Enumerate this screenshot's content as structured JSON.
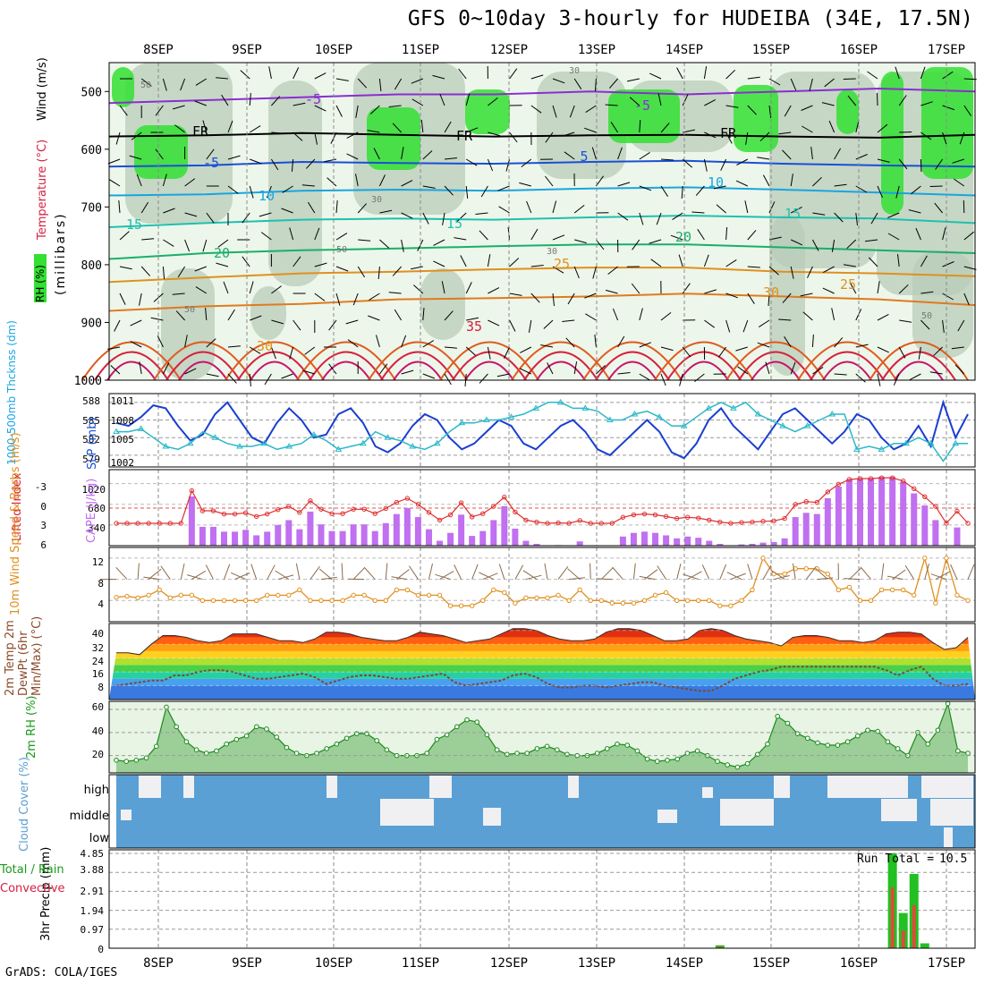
{
  "title": "GFS 0~10day 3-hourly for HUDEIBA (34E, 17.5N)",
  "credit": "GrADS: COLA/IGES",
  "days": [
    "8SEP",
    "9SEP",
    "10SEP",
    "11SEP",
    "12SEP",
    "13SEP",
    "14SEP",
    "15SEP",
    "16SEP",
    "17SEP"
  ],
  "colors": {
    "freezing": "#000000",
    "temp_cold": "#1a4fd6",
    "temp_cool": "#19a5e0",
    "temp_mild": "#1fc0b0",
    "temp_warm": "#1aaf6a",
    "temp_hot": "#e0901e",
    "temp_vhot": "#e05a1e",
    "temp_extreme": "#d62040",
    "rh_low": "#e6f2e2",
    "rh_mid": "#b8ccb8",
    "rh_high": "#33e033"
  },
  "chart_data": [
    {
      "type": "contour",
      "panel": "upper_air",
      "ylabel_rh": "RH (%)",
      "ylabel_temp": "Temperature (°C)",
      "ylabel_wind": "Wind (m/s)",
      "ylabel_units": "(millibars)",
      "y_ticks": [
        500,
        600,
        700,
        800,
        900,
        1000
      ],
      "ylim": [
        1000,
        450
      ],
      "isotherm_labels": [
        "-5",
        "-5",
        "FR",
        "FR",
        "FR",
        "-5",
        "5",
        "10",
        "10",
        "15",
        "15",
        "15",
        "20",
        "20",
        "25",
        "25",
        "30",
        "30",
        "35"
      ],
      "rh_labels": [
        "50",
        "50",
        "30",
        "30",
        "50",
        "50",
        "30"
      ],
      "isotherms": [
        {
          "t": -5,
          "p": [
            520,
            515,
            510,
            505,
            505,
            500,
            505,
            500,
            495,
            500
          ]
        },
        {
          "t": 0,
          "p": [
            578,
            576,
            572,
            575,
            578,
            576,
            575,
            578,
            580,
            575
          ]
        },
        {
          "t": 5,
          "p": [
            630,
            628,
            622,
            624,
            625,
            622,
            620,
            625,
            628,
            630
          ]
        },
        {
          "t": 10,
          "p": [
            680,
            678,
            672,
            670,
            672,
            668,
            666,
            670,
            675,
            680
          ]
        },
        {
          "t": 15,
          "p": [
            735,
            728,
            722,
            720,
            722,
            718,
            715,
            718,
            720,
            728
          ]
        },
        {
          "t": 20,
          "p": [
            790,
            780,
            775,
            772,
            768,
            765,
            765,
            770,
            775,
            780
          ]
        },
        {
          "t": 25,
          "p": [
            830,
            822,
            815,
            812,
            808,
            805,
            805,
            812,
            815,
            820
          ]
        },
        {
          "t": 30,
          "p": [
            880,
            872,
            868,
            860,
            858,
            855,
            850,
            855,
            860,
            870
          ]
        }
      ]
    },
    {
      "type": "line",
      "panel": "thickness_slp",
      "ylabel_left": "1000-500mb Thcknss (dm)",
      "ylabel_right": "SLP (mb)",
      "left_ticks": [
        "588",
        "585",
        "582",
        "579"
      ],
      "right_ticks": [
        "1011",
        "1008",
        "1005",
        "1002"
      ],
      "series": [
        {
          "name": "SLP",
          "axis": "right",
          "values": [
            1007.5,
            1007,
            1008.5,
            1010.5,
            1010,
            1007,
            1004.5,
            1005.5,
            1009,
            1011,
            1008,
            1005,
            1004,
            1007.5,
            1010,
            1008,
            1005,
            1005.5,
            1009,
            1010,
            1007.5,
            1003.5,
            1002.5,
            1004,
            1007,
            1009,
            1008,
            1005,
            1003,
            1004,
            1006,
            1008,
            1007,
            1004,
            1003,
            1005,
            1007,
            1008,
            1006,
            1003,
            1002,
            1004,
            1006,
            1008,
            1006,
            1002.5,
            1001.5,
            1004,
            1008,
            1010,
            1007,
            1005,
            1003,
            1006,
            1009,
            1010,
            1008,
            1006,
            1004,
            1006,
            1009,
            1008,
            1005,
            1003,
            1004,
            1007,
            1003.5,
            1011,
            1005,
            1009
          ]
        },
        {
          "name": "Thickness",
          "axis": "left",
          "values": [
            583,
            583,
            583.5,
            582,
            580.5,
            580,
            581,
            583,
            582,
            581,
            580.5,
            580.5,
            581,
            580,
            580.5,
            581,
            582.5,
            581.5,
            580,
            580.5,
            581,
            583,
            582,
            581.5,
            580.5,
            580,
            581,
            583,
            584.5,
            584.5,
            585,
            585,
            585.5,
            586,
            587,
            588,
            588,
            587,
            587,
            586.5,
            585,
            585,
            586,
            586.5,
            585.5,
            584,
            584,
            585.5,
            587,
            588,
            587,
            588,
            586,
            585,
            584,
            583,
            584,
            585,
            586,
            586,
            580,
            580.5,
            580,
            581,
            581,
            582,
            581,
            578,
            581,
            581
          ]
        }
      ]
    },
    {
      "type": "bar+line",
      "panel": "cape_li",
      "ylabel_left": "Lifted Index",
      "ylabel_right": "CAPE (J/kg)",
      "li_ticks": [
        "-3",
        "0",
        "3",
        "6"
      ],
      "cape_ticks": [
        "1020",
        "680",
        "340"
      ],
      "cape": [
        0,
        0,
        0,
        0,
        0,
        0,
        0,
        810,
        310,
        310,
        230,
        230,
        260,
        170,
        230,
        340,
        420,
        270,
        560,
        350,
        240,
        240,
        350,
        350,
        240,
        370,
        520,
        620,
        470,
        270,
        80,
        210,
        510,
        160,
        240,
        420,
        650,
        280,
        80,
        30,
        0,
        10,
        0,
        70,
        0,
        0,
        0,
        150,
        210,
        230,
        210,
        170,
        120,
        150,
        130,
        80,
        30,
        0,
        20,
        30,
        50,
        60,
        120,
        470,
        540,
        520,
        780,
        970,
        1090,
        1110,
        1110,
        1130,
        1130,
        1050,
        860,
        660,
        420,
        0,
        300,
        0
      ]
    },
    {
      "type": "line",
      "panel": "wind10m",
      "ylabel": "10m Wind Speed & Barbs (m/s)",
      "y_ticks": [
        "12",
        "8",
        "4"
      ],
      "speed": [
        4.6,
        4.8,
        4.5,
        5,
        6,
        4.5,
        5,
        5,
        4,
        4,
        4,
        4,
        4,
        4,
        5,
        5,
        5,
        6,
        4,
        4,
        4,
        4,
        5,
        5,
        4,
        4,
        6,
        6,
        5,
        5,
        5,
        3,
        3,
        3,
        4,
        6,
        5.5,
        3.5,
        4.5,
        4.5,
        4.5,
        5,
        4,
        6,
        4,
        4,
        3.5,
        3.5,
        3.5,
        4,
        5,
        5.5,
        4,
        4,
        4,
        4,
        3,
        3,
        4,
        6,
        12,
        9,
        9,
        10,
        10,
        10,
        9,
        6,
        6.5,
        4,
        4,
        6,
        6,
        6,
        5,
        12,
        3.5,
        12,
        5,
        4
      ]
    },
    {
      "type": "area",
      "panel": "temp2m",
      "ylabel": "2m Temp 2m DewPt (6hr Min/Max) (°C)",
      "y_ticks": [
        "40",
        "32",
        "24",
        "16",
        "8"
      ],
      "temp": [
        27,
        27,
        26,
        32,
        37,
        37,
        36,
        34,
        33,
        34,
        38,
        38,
        38,
        36,
        34,
        34,
        33,
        35,
        39,
        39,
        38,
        36,
        35,
        34,
        34,
        36,
        39,
        38,
        37,
        35,
        33,
        34,
        35,
        38,
        41,
        41,
        40,
        37,
        35,
        34,
        34,
        35,
        39,
        41,
        41,
        40,
        37,
        34,
        34,
        35,
        40,
        41,
        40,
        37,
        35,
        34,
        33,
        31,
        36,
        37,
        37,
        36,
        34,
        34,
        33,
        34,
        38,
        39,
        39,
        38,
        33,
        29,
        30,
        36
      ],
      "dewpt": [
        8,
        9,
        10,
        11,
        11,
        14,
        14,
        16,
        17,
        17,
        16,
        14,
        12,
        12,
        13,
        14,
        15,
        13,
        9,
        11,
        13,
        14,
        14,
        13,
        12,
        12,
        13,
        14,
        15,
        10,
        8,
        9,
        10,
        11,
        14,
        15,
        13,
        9,
        7,
        7,
        8,
        8,
        7,
        8,
        9,
        10,
        10,
        8,
        7,
        6,
        5,
        5,
        8,
        12,
        14,
        16,
        17,
        19,
        19,
        19,
        19,
        19,
        19,
        19,
        19,
        19,
        17,
        14,
        17,
        19,
        12,
        8,
        8,
        9
      ]
    },
    {
      "type": "area",
      "panel": "rh2m",
      "ylabel": "2m RH (%)",
      "y_ticks": [
        "60",
        "40",
        "20"
      ],
      "values": [
        16,
        15,
        16,
        18,
        28,
        62,
        45,
        32,
        25,
        22,
        24,
        30,
        34,
        37,
        45,
        43,
        36,
        27,
        22,
        20,
        22,
        26,
        30,
        35,
        39,
        39,
        33,
        25,
        20,
        20,
        20,
        22,
        34,
        38,
        45,
        51,
        49,
        38,
        25,
        21,
        22,
        22,
        26,
        28,
        25,
        21,
        20,
        20,
        22,
        26,
        30,
        29,
        24,
        17,
        15,
        16,
        17,
        22,
        24,
        20,
        15,
        12,
        10,
        13,
        21,
        30,
        54,
        48,
        39,
        35,
        31,
        29,
        29,
        32,
        37,
        42,
        41,
        32,
        26,
        20,
        40,
        30,
        42,
        65,
        24,
        22
      ]
    },
    {
      "type": "heatmap",
      "panel": "cloud",
      "ylabel": "Cloud Cover (%)",
      "levels": [
        "high",
        "middle",
        "low"
      ]
    },
    {
      "type": "bar",
      "panel": "precip",
      "ylabel": "3hr Precip (mm)",
      "legend_total": "Total / Rain",
      "legend_conv": "Convective",
      "run_total_label": "Run Total =",
      "run_total_value": "10.5",
      "y_ticks": [
        "4.85",
        "3.88",
        "2.91",
        "1.94",
        "0.97",
        "0"
      ],
      "bars": [
        {
          "idx": 56,
          "total": 0.15,
          "conv": 0.1
        },
        {
          "idx": 72,
          "total": 4.85,
          "conv": 3.1
        },
        {
          "idx": 73,
          "total": 1.8,
          "conv": 0.9
        },
        {
          "idx": 74,
          "total": 3.8,
          "conv": 2.2
        },
        {
          "idx": 75,
          "total": 0.25,
          "conv": 0
        }
      ]
    }
  ]
}
